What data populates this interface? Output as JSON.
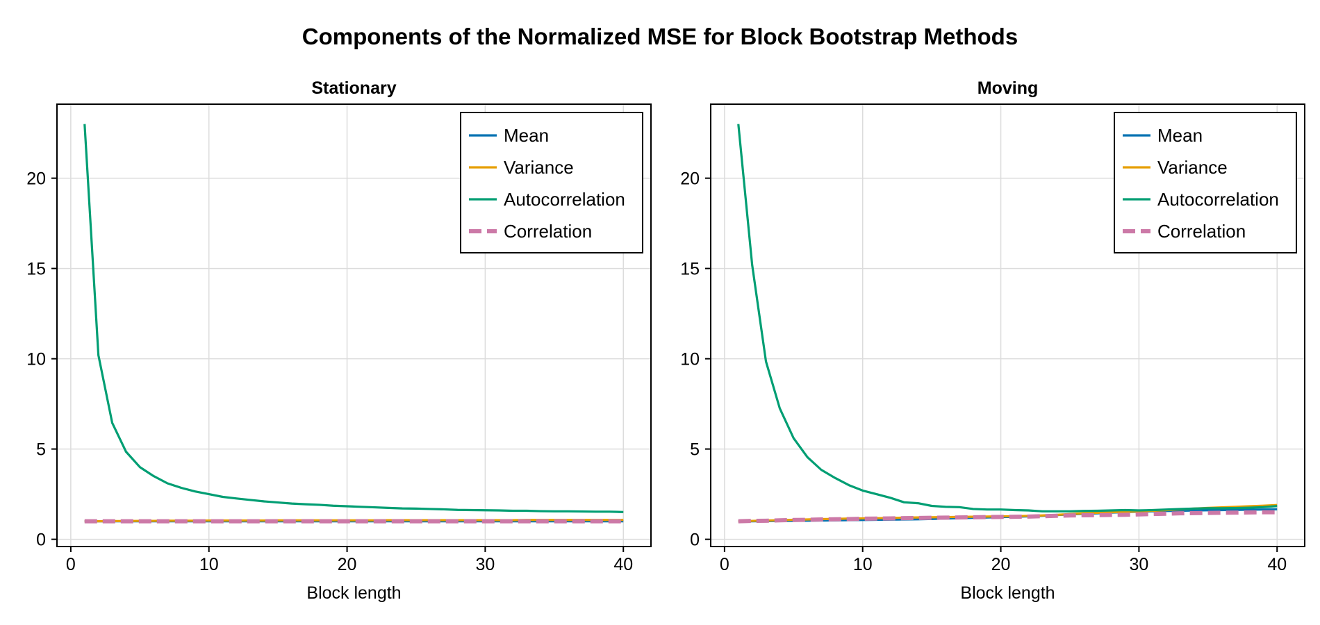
{
  "figure_title": "Components of the Normalized MSE for Block Bootstrap Methods",
  "colors": {
    "mean": "#0072b2",
    "variance": "#e69f00",
    "autocorrelation": "#009e73",
    "correlation": "#cc79a7",
    "grid": "#dcdcdc",
    "frame": "#000000"
  },
  "chart_data": [
    {
      "type": "line",
      "title": "Stationary",
      "xlabel": "Block length",
      "ylabel": "",
      "xlim": [
        -1,
        42
      ],
      "ylim": [
        -0.4,
        24.1
      ],
      "xticks": [
        0,
        10,
        20,
        30,
        40
      ],
      "yticks": [
        0,
        5,
        10,
        15,
        20
      ],
      "grid": true,
      "legend_position": "top-right",
      "x": [
        1,
        2,
        3,
        4,
        5,
        6,
        7,
        8,
        9,
        10,
        11,
        12,
        13,
        14,
        15,
        16,
        17,
        18,
        19,
        20,
        21,
        22,
        23,
        24,
        25,
        26,
        27,
        28,
        29,
        30,
        31,
        32,
        33,
        34,
        35,
        36,
        37,
        38,
        39,
        40
      ],
      "series": [
        {
          "name": "Mean",
          "color": "#0072b2",
          "style": "solid",
          "values": [
            1.0,
            1.0,
            1.0,
            1.0,
            1.0,
            1.0,
            1.0,
            1.0,
            1.0,
            1.0,
            1.0,
            1.0,
            1.0,
            1.0,
            1.0,
            1.0,
            1.0,
            1.0,
            1.0,
            1.0,
            1.0,
            1.0,
            1.0,
            1.0,
            1.0,
            1.0,
            1.0,
            1.0,
            1.0,
            1.0,
            1.0,
            1.0,
            1.0,
            1.0,
            1.0,
            1.0,
            1.0,
            1.0,
            1.0,
            1.0
          ]
        },
        {
          "name": "Variance",
          "color": "#e69f00",
          "style": "solid",
          "values": [
            1.0,
            1.0,
            1.01,
            1.01,
            1.02,
            1.02,
            1.03,
            1.03,
            1.03,
            1.04,
            1.04,
            1.04,
            1.04,
            1.04,
            1.05,
            1.05,
            1.05,
            1.05,
            1.05,
            1.05,
            1.05,
            1.05,
            1.06,
            1.06,
            1.06,
            1.06,
            1.06,
            1.06,
            1.06,
            1.06,
            1.06,
            1.06,
            1.07,
            1.07,
            1.07,
            1.07,
            1.07,
            1.07,
            1.07,
            1.07
          ]
        },
        {
          "name": "Autocorrelation",
          "color": "#009e73",
          "style": "solid",
          "values": [
            23.0,
            10.2,
            6.45,
            4.85,
            4.0,
            3.5,
            3.1,
            2.85,
            2.65,
            2.5,
            2.35,
            2.26,
            2.18,
            2.1,
            2.04,
            1.98,
            1.94,
            1.91,
            1.86,
            1.83,
            1.8,
            1.77,
            1.74,
            1.71,
            1.7,
            1.68,
            1.66,
            1.63,
            1.62,
            1.61,
            1.6,
            1.58,
            1.58,
            1.56,
            1.55,
            1.55,
            1.54,
            1.53,
            1.53,
            1.51
          ]
        },
        {
          "name": "Correlation",
          "color": "#cc79a7",
          "style": "dashed",
          "values": [
            1.0,
            1.0,
            1.0,
            1.0,
            1.0,
            1.0,
            1.0,
            1.0,
            1.0,
            1.0,
            1.0,
            1.0,
            1.0,
            1.0,
            1.0,
            1.0,
            1.0,
            1.0,
            1.0,
            1.0,
            1.0,
            1.0,
            1.0,
            1.0,
            1.0,
            1.0,
            1.0,
            1.0,
            1.0,
            1.0,
            1.0,
            1.0,
            1.0,
            1.0,
            1.0,
            1.0,
            1.0,
            1.0,
            1.0,
            1.0
          ]
        }
      ]
    },
    {
      "type": "line",
      "title": "Moving",
      "xlabel": "Block length",
      "ylabel": "",
      "xlim": [
        -1,
        42
      ],
      "ylim": [
        -0.4,
        24.1
      ],
      "xticks": [
        0,
        10,
        20,
        30,
        40
      ],
      "yticks": [
        0,
        5,
        10,
        15,
        20
      ],
      "grid": true,
      "legend_position": "top-right",
      "x": [
        1,
        2,
        3,
        4,
        5,
        6,
        7,
        8,
        9,
        10,
        11,
        12,
        13,
        14,
        15,
        16,
        17,
        18,
        19,
        20,
        21,
        22,
        23,
        24,
        25,
        26,
        27,
        28,
        29,
        30,
        31,
        32,
        33,
        34,
        35,
        36,
        37,
        38,
        39,
        40
      ],
      "series": [
        {
          "name": "Mean",
          "color": "#0072b2",
          "style": "solid",
          "values": [
            1.0,
            1.0,
            1.01,
            1.02,
            1.02,
            1.03,
            1.04,
            1.05,
            1.06,
            1.07,
            1.08,
            1.09,
            1.1,
            1.11,
            1.13,
            1.15,
            1.17,
            1.19,
            1.21,
            1.23,
            1.25,
            1.27,
            1.3,
            1.34,
            1.38,
            1.41,
            1.44,
            1.48,
            1.51,
            1.53,
            1.55,
            1.57,
            1.58,
            1.6,
            1.61,
            1.62,
            1.63,
            1.64,
            1.65,
            1.66
          ]
        },
        {
          "name": "Variance",
          "color": "#e69f00",
          "style": "solid",
          "values": [
            1.0,
            1.02,
            1.04,
            1.06,
            1.08,
            1.1,
            1.12,
            1.13,
            1.15,
            1.16,
            1.17,
            1.18,
            1.2,
            1.21,
            1.22,
            1.23,
            1.24,
            1.25,
            1.26,
            1.27,
            1.28,
            1.3,
            1.32,
            1.35,
            1.4,
            1.44,
            1.47,
            1.5,
            1.52,
            1.55,
            1.58,
            1.62,
            1.66,
            1.7,
            1.74,
            1.77,
            1.8,
            1.83,
            1.86,
            1.9
          ]
        },
        {
          "name": "Autocorrelation",
          "color": "#009e73",
          "style": "solid",
          "values": [
            23.0,
            15.2,
            9.85,
            7.25,
            5.6,
            4.55,
            3.85,
            3.4,
            3.0,
            2.7,
            2.5,
            2.3,
            2.05,
            2.0,
            1.85,
            1.8,
            1.78,
            1.68,
            1.65,
            1.65,
            1.62,
            1.6,
            1.55,
            1.55,
            1.55,
            1.57,
            1.58,
            1.6,
            1.62,
            1.6,
            1.62,
            1.65,
            1.68,
            1.7,
            1.72,
            1.72,
            1.73,
            1.75,
            1.78,
            1.84
          ]
        },
        {
          "name": "Correlation",
          "color": "#cc79a7",
          "style": "dashed",
          "values": [
            1.0,
            1.02,
            1.03,
            1.05,
            1.07,
            1.08,
            1.1,
            1.11,
            1.12,
            1.14,
            1.15,
            1.16,
            1.17,
            1.18,
            1.19,
            1.2,
            1.21,
            1.22,
            1.23,
            1.24,
            1.25,
            1.26,
            1.28,
            1.3,
            1.32,
            1.33,
            1.34,
            1.35,
            1.36,
            1.38,
            1.4,
            1.42,
            1.44,
            1.45,
            1.46,
            1.47,
            1.48,
            1.49,
            1.5,
            1.5
          ]
        }
      ]
    }
  ]
}
